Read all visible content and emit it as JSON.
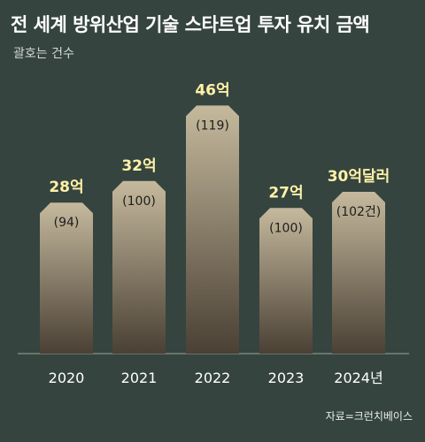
{
  "title": "전 세계 방위산업 기술 스타트업 투자 유치 금액",
  "subtitle": "괄호는 건수",
  "source": "자료=크런치베이스",
  "colors": {
    "background": "#35443f",
    "bar_top": "#c5b99d",
    "bar_bottom": "#4a4034",
    "value_label": "#fff2a8",
    "count_label": "#1e1e1e",
    "axis_label": "#ffffff"
  },
  "chart_data": {
    "type": "bar",
    "categories": [
      "2020",
      "2021",
      "2022",
      "2023",
      "2024년"
    ],
    "values": [
      28,
      32,
      46,
      27,
      30
    ],
    "value_labels": [
      "28억",
      "32억",
      "46억",
      "27억",
      "30억달러"
    ],
    "counts": [
      94,
      100,
      119,
      100,
      102
    ],
    "count_labels": [
      "(94)",
      "(100)",
      "(119)",
      "(100)",
      "(102건)"
    ],
    "title": "전 세계 방위산업 기술 스타트업 투자 유치 금액",
    "subtitle": "괄호는 건수",
    "xlabel": "",
    "ylabel": "",
    "ylim": [
      0,
      50
    ],
    "grid": false,
    "legend": "none"
  }
}
